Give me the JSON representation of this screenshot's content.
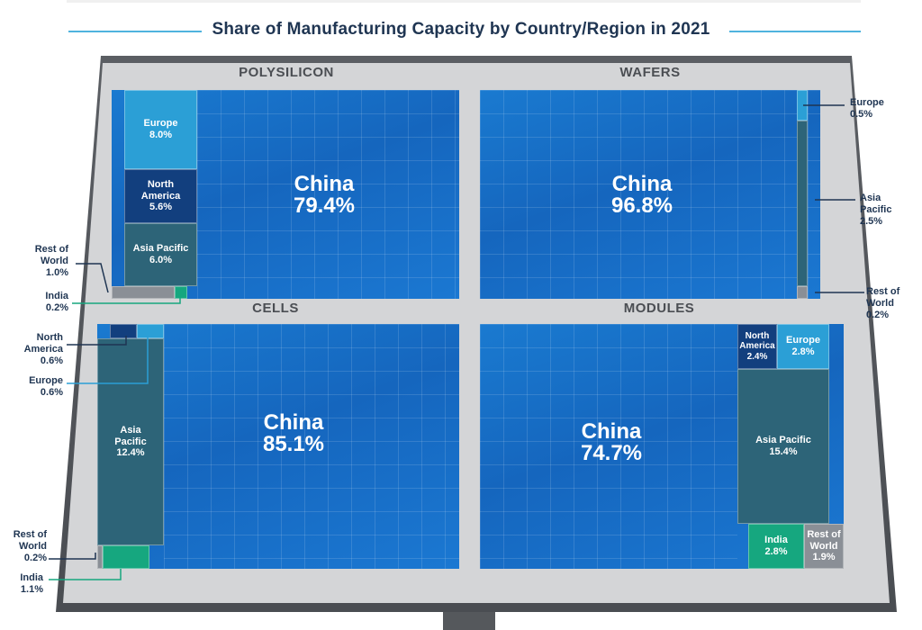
{
  "title": "Share of Manufacturing Capacity by Country/Region in 2021",
  "chart_data": {
    "type": "treemap",
    "title": "Share of Manufacturing Capacity by Country/Region in 2021",
    "panels": [
      {
        "name": "POLYSILICON",
        "segments": [
          {
            "label": "China",
            "value": 79.4,
            "display": "79.4%"
          },
          {
            "label": "Europe",
            "value": 8.0,
            "display": "8.0%"
          },
          {
            "label": "North America",
            "value": 5.6,
            "display": "5.6%"
          },
          {
            "label": "Asia Pacific",
            "value": 6.0,
            "display": "6.0%"
          },
          {
            "label": "Rest of World",
            "value": 1.0,
            "display": "1.0%"
          },
          {
            "label": "India",
            "value": 0.2,
            "display": "0.2%"
          }
        ]
      },
      {
        "name": "WAFERS",
        "segments": [
          {
            "label": "China",
            "value": 96.8,
            "display": "96.8%"
          },
          {
            "label": "Europe",
            "value": 0.5,
            "display": "0.5%"
          },
          {
            "label": "Asia Pacific",
            "value": 2.5,
            "display": "2.5%"
          },
          {
            "label": "Rest of World",
            "value": 0.2,
            "display": "0.2%"
          }
        ]
      },
      {
        "name": "CELLS",
        "segments": [
          {
            "label": "China",
            "value": 85.1,
            "display": "85.1%"
          },
          {
            "label": "North America",
            "value": 0.6,
            "display": "0.6%"
          },
          {
            "label": "Europe",
            "value": 0.6,
            "display": "0.6%"
          },
          {
            "label": "Asia Pacific",
            "value": 12.4,
            "display": "12.4%"
          },
          {
            "label": "Rest of World",
            "value": 0.2,
            "display": "0.2%"
          },
          {
            "label": "India",
            "value": 1.1,
            "display": "1.1%"
          }
        ]
      },
      {
        "name": "MODULES",
        "segments": [
          {
            "label": "China",
            "value": 74.7,
            "display": "74.7%"
          },
          {
            "label": "North America",
            "value": 2.4,
            "display": "2.4%"
          },
          {
            "label": "Europe",
            "value": 2.8,
            "display": "2.8%"
          },
          {
            "label": "Asia Pacific",
            "value": 15.4,
            "display": "15.4%"
          },
          {
            "label": "India",
            "value": 2.8,
            "display": "2.8%"
          },
          {
            "label": "Rest of World",
            "value": 1.9,
            "display": "1.9%"
          }
        ]
      }
    ]
  },
  "colors": {
    "china": "#1a6fc8",
    "europe": "#2b9fd6",
    "north_america": "#123f7e",
    "asia_pacific": "#2d6478",
    "india": "#16a77f",
    "rest_of_world": "#8a8f96",
    "title_line": "#4fb3de",
    "frame": "#4f5257"
  }
}
